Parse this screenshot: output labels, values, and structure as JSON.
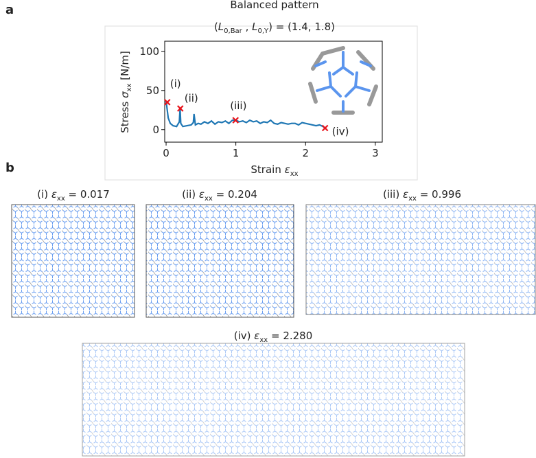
{
  "panel_labels": [
    "a",
    "b"
  ],
  "chart_data": {
    "type": "line",
    "title": "Balanced pattern",
    "subtitle": [
      "(",
      "L",
      "0,Bar",
      " , ",
      "L",
      "0,Y",
      ") = (1.4, 1.8)"
    ],
    "x_label": [
      "Strain ",
      "ε",
      "xx"
    ],
    "y_label": [
      "Stress ",
      "σ",
      "xx",
      " [N/m]"
    ],
    "xlim": [
      -0.02,
      3.1
    ],
    "ylim": [
      -16,
      113
    ],
    "xticks": [
      0,
      1,
      2,
      3
    ],
    "yticks": [
      0,
      50,
      100
    ],
    "series": [
      {
        "color": "#1f77b4",
        "x": [
          0,
          0.01,
          0.03,
          0.06,
          0.1,
          0.15,
          0.19,
          0.2,
          0.21,
          0.24,
          0.3,
          0.36,
          0.39,
          0.4,
          0.42,
          0.46,
          0.5,
          0.55,
          0.6,
          0.65,
          0.7,
          0.75,
          0.8,
          0.85,
          0.9,
          0.95,
          1.0,
          1.05,
          1.1,
          1.15,
          1.2,
          1.25,
          1.3,
          1.35,
          1.4,
          1.45,
          1.5,
          1.55,
          1.6,
          1.65,
          1.7,
          1.75,
          1.8,
          1.85,
          1.9,
          1.95,
          2.0,
          2.05,
          2.1,
          2.15,
          2.2,
          2.25,
          2.28
        ],
        "values": [
          36,
          30,
          15,
          8,
          5,
          4,
          10,
          27,
          8,
          4,
          5,
          6,
          9,
          20,
          6,
          8,
          7,
          10,
          8,
          11,
          7,
          10,
          9,
          11,
          8,
          12,
          12,
          10,
          11,
          9,
          12,
          10,
          11,
          8,
          10,
          9,
          12,
          8,
          7,
          9,
          8,
          7,
          8,
          8,
          6,
          9,
          8,
          7,
          6,
          5,
          6,
          4,
          2
        ]
      }
    ],
    "markers": {
      "color": "#e8121a",
      "x": [
        0.017,
        0.204,
        0.996,
        2.28
      ],
      "values": [
        35,
        27,
        12,
        2
      ],
      "labels": [
        "(i)",
        "(ii)",
        "(iii)",
        "(iv)"
      ]
    }
  },
  "snapshots": [
    {
      "caption": [
        "(i) ",
        "ε",
        "xx",
        " = 0.017"
      ]
    },
    {
      "caption": [
        "(ii) ",
        "ε",
        "xx",
        " = 0.204"
      ]
    },
    {
      "caption": [
        "(iii) ",
        "ε",
        "xx",
        " = 0.996"
      ]
    },
    {
      "caption": [
        "(iv) ",
        "ε",
        "xx",
        " = 2.280"
      ]
    }
  ]
}
